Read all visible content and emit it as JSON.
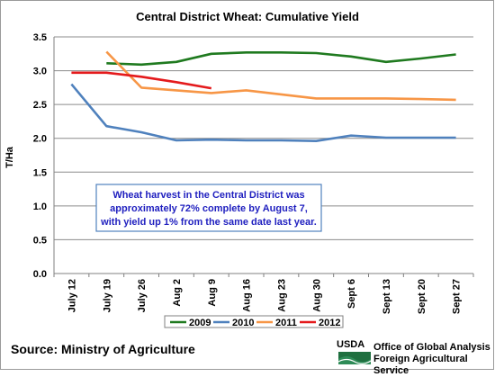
{
  "chart_data": {
    "type": "line",
    "title": "Central District Wheat: Cumulative Yield",
    "ylabel": "T/Ha",
    "xlabel": "",
    "ylim": [
      0,
      3.5
    ],
    "yticks": [
      "0.0",
      "0.5",
      "1.0",
      "1.5",
      "2.0",
      "2.5",
      "3.0",
      "3.5"
    ],
    "categories": [
      "July 12",
      "July 19",
      "July 26",
      "Aug 2",
      "Aug 9",
      "Aug 16",
      "Aug 23",
      "Aug 30",
      "Sept 6",
      "Sept 13",
      "Sept 20",
      "Sept 27"
    ],
    "grid": "horizontal",
    "legend_position": "bottom",
    "series": [
      {
        "name": "2009",
        "color": "#1f7a1f",
        "values": [
          null,
          3.11,
          3.09,
          3.13,
          3.25,
          3.27,
          3.27,
          3.26,
          3.21,
          3.13,
          3.18,
          3.24
        ]
      },
      {
        "name": "2010",
        "color": "#4f81bd",
        "values": [
          2.8,
          2.18,
          2.09,
          1.97,
          1.98,
          1.97,
          1.97,
          1.96,
          2.04,
          2.01,
          2.01,
          2.01
        ]
      },
      {
        "name": "2011",
        "color": "#f79646",
        "values": [
          null,
          3.28,
          2.75,
          2.71,
          2.67,
          2.71,
          2.65,
          2.59,
          2.59,
          2.59,
          2.58,
          2.57
        ]
      },
      {
        "name": "2012",
        "color": "#e41a1c",
        "values": [
          2.97,
          2.97,
          2.91,
          2.83,
          2.74,
          null,
          null,
          null,
          null,
          null,
          null,
          null
        ]
      }
    ],
    "annotation": "Wheat harvest in the Central District was approximately 72% complete by August 7, with yield up 1% from the same date last year."
  },
  "footer": {
    "source": "Source:  Ministry of Agriculture",
    "logo_word": "USDA",
    "office_line1": "Office of Global Analysis",
    "office_line2": "Foreign Agricultural Service"
  }
}
